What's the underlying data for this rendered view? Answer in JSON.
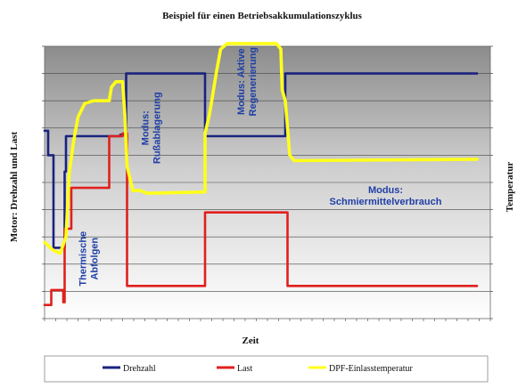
{
  "chart_data": {
    "type": "line",
    "title": "Beispiel für einen Betriebsakkumulationszyklus",
    "xlabel": "Zeit",
    "ylabel_left": "Motor: Drehzahl und Last",
    "ylabel_right": "Temperatur",
    "xlim": [
      0,
      100
    ],
    "ylim": [
      0,
      100
    ],
    "grid": true,
    "legend_position": "bottom",
    "series": [
      {
        "name": "Drehzahl",
        "color": "#1a237e",
        "points": [
          [
            0,
            69
          ],
          [
            0.8,
            69
          ],
          [
            0.8,
            60
          ],
          [
            2,
            60
          ],
          [
            2,
            26
          ],
          [
            4.5,
            26
          ],
          [
            4.5,
            54
          ],
          [
            4.8,
            54
          ],
          [
            4.8,
            67
          ],
          [
            17,
            67
          ],
          [
            17,
            67.5
          ],
          [
            18.3,
            67.5
          ],
          [
            18.3,
            90
          ],
          [
            36,
            90
          ],
          [
            36,
            67
          ],
          [
            54,
            67
          ],
          [
            54,
            90
          ],
          [
            97,
            90
          ]
        ]
      },
      {
        "name": "Last",
        "color": "#e0201d",
        "points": [
          [
            0,
            5
          ],
          [
            1.5,
            5
          ],
          [
            1.5,
            10.5
          ],
          [
            4.2,
            10.5
          ],
          [
            4.2,
            6
          ],
          [
            4.5,
            6
          ],
          [
            4.5,
            33
          ],
          [
            6,
            33
          ],
          [
            6,
            48
          ],
          [
            14.5,
            48
          ],
          [
            14.5,
            67
          ],
          [
            17.5,
            67
          ],
          [
            17.5,
            68
          ],
          [
            18.5,
            68
          ],
          [
            18.5,
            12
          ],
          [
            36,
            12
          ],
          [
            36,
            39
          ],
          [
            54.5,
            39
          ],
          [
            54.5,
            12
          ],
          [
            97,
            12
          ]
        ]
      },
      {
        "name": "DPF-Einlasstemperatur",
        "color": "#ffff1a",
        "points": [
          [
            0,
            28
          ],
          [
            2,
            25
          ],
          [
            3.5,
            24
          ],
          [
            4.8,
            30
          ],
          [
            5.5,
            53
          ],
          [
            6.5,
            65
          ],
          [
            7.5,
            74
          ],
          [
            9,
            79
          ],
          [
            11,
            80
          ],
          [
            14.5,
            80
          ],
          [
            15,
            85
          ],
          [
            16,
            87
          ],
          [
            17.5,
            87
          ],
          [
            18,
            75
          ],
          [
            18.5,
            56
          ],
          [
            19.8,
            47
          ],
          [
            21.5,
            47
          ],
          [
            23,
            46
          ],
          [
            36,
            46.5
          ],
          [
            36,
            68
          ],
          [
            37,
            75
          ],
          [
            38.5,
            90
          ],
          [
            39.5,
            99
          ],
          [
            41,
            101
          ],
          [
            52,
            101
          ],
          [
            53,
            99
          ],
          [
            53.3,
            84
          ],
          [
            54,
            80
          ],
          [
            55,
            60
          ],
          [
            56,
            58
          ],
          [
            97,
            58.5
          ]
        ]
      }
    ],
    "annotations": [
      {
        "text": [
          "Thermische",
          "Abfolgen"
        ],
        "x": 9.3,
        "y": 22,
        "rotation": -90
      },
      {
        "text": [
          "Modus:",
          "Rußablagerung"
        ],
        "x": 23.3,
        "y": 70,
        "rotation": -90
      },
      {
        "text": [
          "Modus: Aktive",
          "Regenerierung"
        ],
        "x": 44.8,
        "y": 87,
        "rotation": -90
      },
      {
        "text": [
          "Modus:",
          "Schmiermittelverbrauch"
        ],
        "x": 76.5,
        "y": 46,
        "rotation": 0
      }
    ]
  }
}
